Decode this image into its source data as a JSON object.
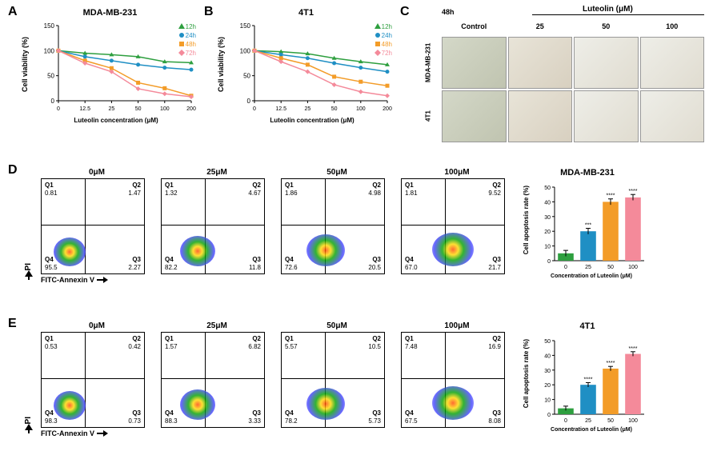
{
  "panelA": {
    "label": "A",
    "title": "MDA-MB-231",
    "type": "line",
    "xlabel": "Luteolin concentration (μM)",
    "ylabel": "Cell viability (%)",
    "xticks": [
      "0",
      "12.5",
      "25",
      "50",
      "100",
      "200"
    ],
    "yticks": [
      0,
      50,
      100,
      150
    ],
    "ylim": [
      0,
      150
    ],
    "series": [
      {
        "name": "12h",
        "color": "#2e9f3f",
        "marker": "triangle",
        "values": [
          100,
          95,
          92,
          88,
          78,
          76
        ]
      },
      {
        "name": "24h",
        "color": "#1f8fc4",
        "marker": "circle",
        "values": [
          100,
          88,
          80,
          72,
          66,
          62
        ]
      },
      {
        "name": "48h",
        "color": "#f39c28",
        "marker": "square",
        "values": [
          100,
          80,
          65,
          36,
          25,
          10
        ]
      },
      {
        "name": "72h",
        "color": "#f48a9a",
        "marker": "diamond",
        "values": [
          100,
          75,
          58,
          24,
          14,
          8
        ]
      }
    ],
    "legend_pos": "top-right"
  },
  "panelB": {
    "label": "B",
    "title": "4T1",
    "type": "line",
    "xlabel": "Luteolin concentration (μM)",
    "ylabel": "Cell viability (%)",
    "xticks": [
      "0",
      "12.5",
      "25",
      "50",
      "100",
      "200"
    ],
    "yticks": [
      0,
      50,
      100,
      150
    ],
    "ylim": [
      0,
      150
    ],
    "series": [
      {
        "name": "12h",
        "color": "#2e9f3f",
        "marker": "triangle",
        "values": [
          100,
          98,
          94,
          85,
          78,
          72
        ]
      },
      {
        "name": "24h",
        "color": "#1f8fc4",
        "marker": "circle",
        "values": [
          100,
          92,
          85,
          75,
          66,
          58
        ]
      },
      {
        "name": "48h",
        "color": "#f39c28",
        "marker": "square",
        "values": [
          100,
          85,
          72,
          48,
          38,
          30
        ]
      },
      {
        "name": "72h",
        "color": "#f48a9a",
        "marker": "diamond",
        "values": [
          100,
          78,
          58,
          32,
          18,
          10
        ]
      }
    ],
    "legend_pos": "top-right"
  },
  "panelC": {
    "label": "C",
    "header_label": "Luteolin (μM)",
    "time_label": "48h",
    "columns": [
      "Control",
      "25",
      "50",
      "100"
    ],
    "rows": [
      "MDA-MB-231",
      "4T1"
    ]
  },
  "panelD": {
    "label": "D",
    "cell_line_title": "MDA-MB-231",
    "y_axis": "PI",
    "x_axis": "FITC-Annexin V",
    "plots": [
      {
        "title": "0μM",
        "Q1": "0.81",
        "Q2": "1.47",
        "Q3": "2.27",
        "Q4": "95.5"
      },
      {
        "title": "25μM",
        "Q1": "1.32",
        "Q2": "4.67",
        "Q3": "11.8",
        "Q4": "82.2"
      },
      {
        "title": "50μM",
        "Q1": "1.86",
        "Q2": "4.98",
        "Q3": "20.5",
        "Q4": "72.6"
      },
      {
        "title": "100μM",
        "Q1": "1.81",
        "Q2": "9.52",
        "Q3": "21.7",
        "Q4": "67.0"
      }
    ],
    "bar_chart": {
      "type": "bar",
      "title": "MDA-MB-231",
      "ylabel": "Cell apoptosis rate (%)",
      "xlabel": "Concentration of Luteolin (μM)",
      "categories": [
        "0",
        "25",
        "50",
        "100"
      ],
      "values": [
        5,
        20,
        40,
        43
      ],
      "errors": [
        2,
        2,
        2,
        2
      ],
      "sig": [
        "",
        "***",
        "****",
        "****"
      ],
      "colors": [
        "#2e9f3f",
        "#1f8fc4",
        "#f39c28",
        "#f48a9a"
      ],
      "ylim": [
        0,
        50
      ],
      "ytick_step": 10
    }
  },
  "panelE": {
    "label": "E",
    "cell_line_title": "4T1",
    "y_axis": "PI",
    "x_axis": "FITC-Annexin V",
    "plots": [
      {
        "title": "0μM",
        "Q1": "0.53",
        "Q2": "0.42",
        "Q3": "0.73",
        "Q4": "98.3"
      },
      {
        "title": "25μM",
        "Q1": "1.57",
        "Q2": "6.82",
        "Q3": "3.33",
        "Q4": "88.3"
      },
      {
        "title": "50μM",
        "Q1": "5.57",
        "Q2": "10.5",
        "Q3": "5.73",
        "Q4": "78.2"
      },
      {
        "title": "100μM",
        "Q1": "7.48",
        "Q2": "16.9",
        "Q3": "8.08",
        "Q4": "67.5"
      }
    ],
    "bar_chart": {
      "type": "bar",
      "title": "4T1",
      "ylabel": "Cell apoptosis rate (%)",
      "xlabel": "Concentration of Luteolin (μM)",
      "categories": [
        "0",
        "25",
        "50",
        "100"
      ],
      "values": [
        4,
        20,
        31,
        41
      ],
      "errors": [
        1.5,
        1.5,
        1.5,
        1.5
      ],
      "sig": [
        "",
        "****",
        "****",
        "****"
      ],
      "colors": [
        "#2e9f3f",
        "#1f8fc4",
        "#f39c28",
        "#f48a9a"
      ],
      "ylim": [
        0,
        50
      ],
      "ytick_step": 10
    }
  }
}
